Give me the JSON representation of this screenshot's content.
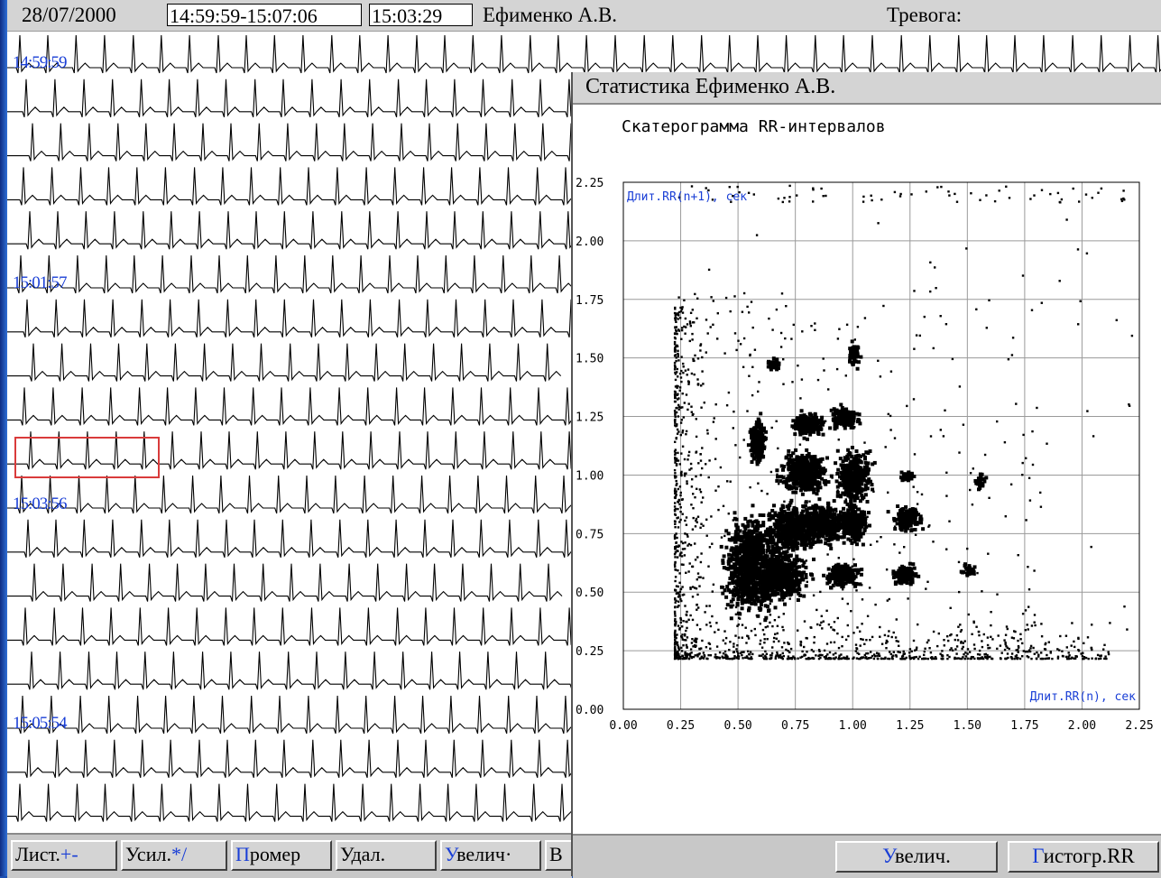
{
  "header": {
    "date": "28/07/2000",
    "time_range": "14:59:59-15:07:06",
    "current_time": "15:03:29",
    "patient": "Ефименко А.В.",
    "alarm_label": "Тревога:"
  },
  "ecg": {
    "timestamps": [
      "14:59:59",
      "15:01:57",
      "15:03:56",
      "15:05:54"
    ]
  },
  "toolbar": [
    {
      "hotkey": "",
      "label": "Лист.",
      "suffix": "+-"
    },
    {
      "hotkey": "",
      "label": "Усил.",
      "suffix": "*/"
    },
    {
      "hotkey": "П",
      "label": "ромер",
      "suffix": ""
    },
    {
      "hotkey": "",
      "label": "Удал.",
      "suffix": ""
    },
    {
      "hotkey": "У",
      "label": "велич·",
      "suffix": ""
    },
    {
      "hotkey": "",
      "label": "В",
      "suffix": ""
    }
  ],
  "stats": {
    "title": "Статистика  Ефименко А.В.",
    "zoom_button": {
      "hotkey": "У",
      "label": "велич."
    },
    "histogram_button": {
      "hotkey": "Г",
      "label": "истогр.RR"
    }
  },
  "chart_data": {
    "type": "scatter",
    "title": "Скатерограмма RR-интервалов",
    "xlabel": "Длит.RR(n), сек",
    "ylabel": "Длит.RR(n+1), сек",
    "xlim": [
      0,
      2.25
    ],
    "ylim": [
      0,
      2.25
    ],
    "xticks": [
      "0.00",
      "0.25",
      "0.50",
      "0.75",
      "1.00",
      "1.25",
      "1.50",
      "1.75",
      "2.00",
      "2.25"
    ],
    "yticks": [
      "0.00",
      "0.25",
      "0.50",
      "0.75",
      "1.00",
      "1.25",
      "1.50",
      "1.75",
      "2.00",
      "2.25"
    ],
    "grid": true,
    "clusters": [
      {
        "cx": 0.55,
        "cy": 0.62,
        "rx": 0.09,
        "ry": 0.16,
        "n": 900
      },
      {
        "cx": 0.68,
        "cy": 0.58,
        "rx": 0.09,
        "ry": 0.09,
        "n": 500
      },
      {
        "cx": 0.72,
        "cy": 0.78,
        "rx": 0.08,
        "ry": 0.08,
        "n": 500
      },
      {
        "cx": 0.86,
        "cy": 0.8,
        "rx": 0.08,
        "ry": 0.07,
        "n": 450
      },
      {
        "cx": 0.78,
        "cy": 1.02,
        "rx": 0.08,
        "ry": 0.07,
        "n": 400
      },
      {
        "cx": 1.0,
        "cy": 1.0,
        "rx": 0.06,
        "ry": 0.09,
        "n": 350
      },
      {
        "cx": 1.0,
        "cy": 0.8,
        "rx": 0.05,
        "ry": 0.07,
        "n": 250
      },
      {
        "cx": 0.95,
        "cy": 0.58,
        "rx": 0.06,
        "ry": 0.04,
        "n": 200
      },
      {
        "cx": 0.8,
        "cy": 1.22,
        "rx": 0.06,
        "ry": 0.04,
        "n": 200
      },
      {
        "cx": 0.58,
        "cy": 1.15,
        "rx": 0.03,
        "ry": 0.08,
        "n": 180
      },
      {
        "cx": 0.96,
        "cy": 1.25,
        "rx": 0.05,
        "ry": 0.04,
        "n": 150
      },
      {
        "cx": 1.23,
        "cy": 0.82,
        "rx": 0.05,
        "ry": 0.04,
        "n": 150
      },
      {
        "cx": 1.22,
        "cy": 0.58,
        "rx": 0.04,
        "ry": 0.03,
        "n": 130
      },
      {
        "cx": 1.0,
        "cy": 1.52,
        "rx": 0.02,
        "ry": 0.04,
        "n": 60
      },
      {
        "cx": 0.65,
        "cy": 1.48,
        "rx": 0.03,
        "ry": 0.02,
        "n": 40
      },
      {
        "cx": 1.23,
        "cy": 1.0,
        "rx": 0.03,
        "ry": 0.02,
        "n": 40
      },
      {
        "cx": 1.55,
        "cy": 0.98,
        "rx": 0.02,
        "ry": 0.03,
        "n": 30
      },
      {
        "cx": 1.5,
        "cy": 0.6,
        "rx": 0.03,
        "ry": 0.02,
        "n": 30
      }
    ]
  }
}
